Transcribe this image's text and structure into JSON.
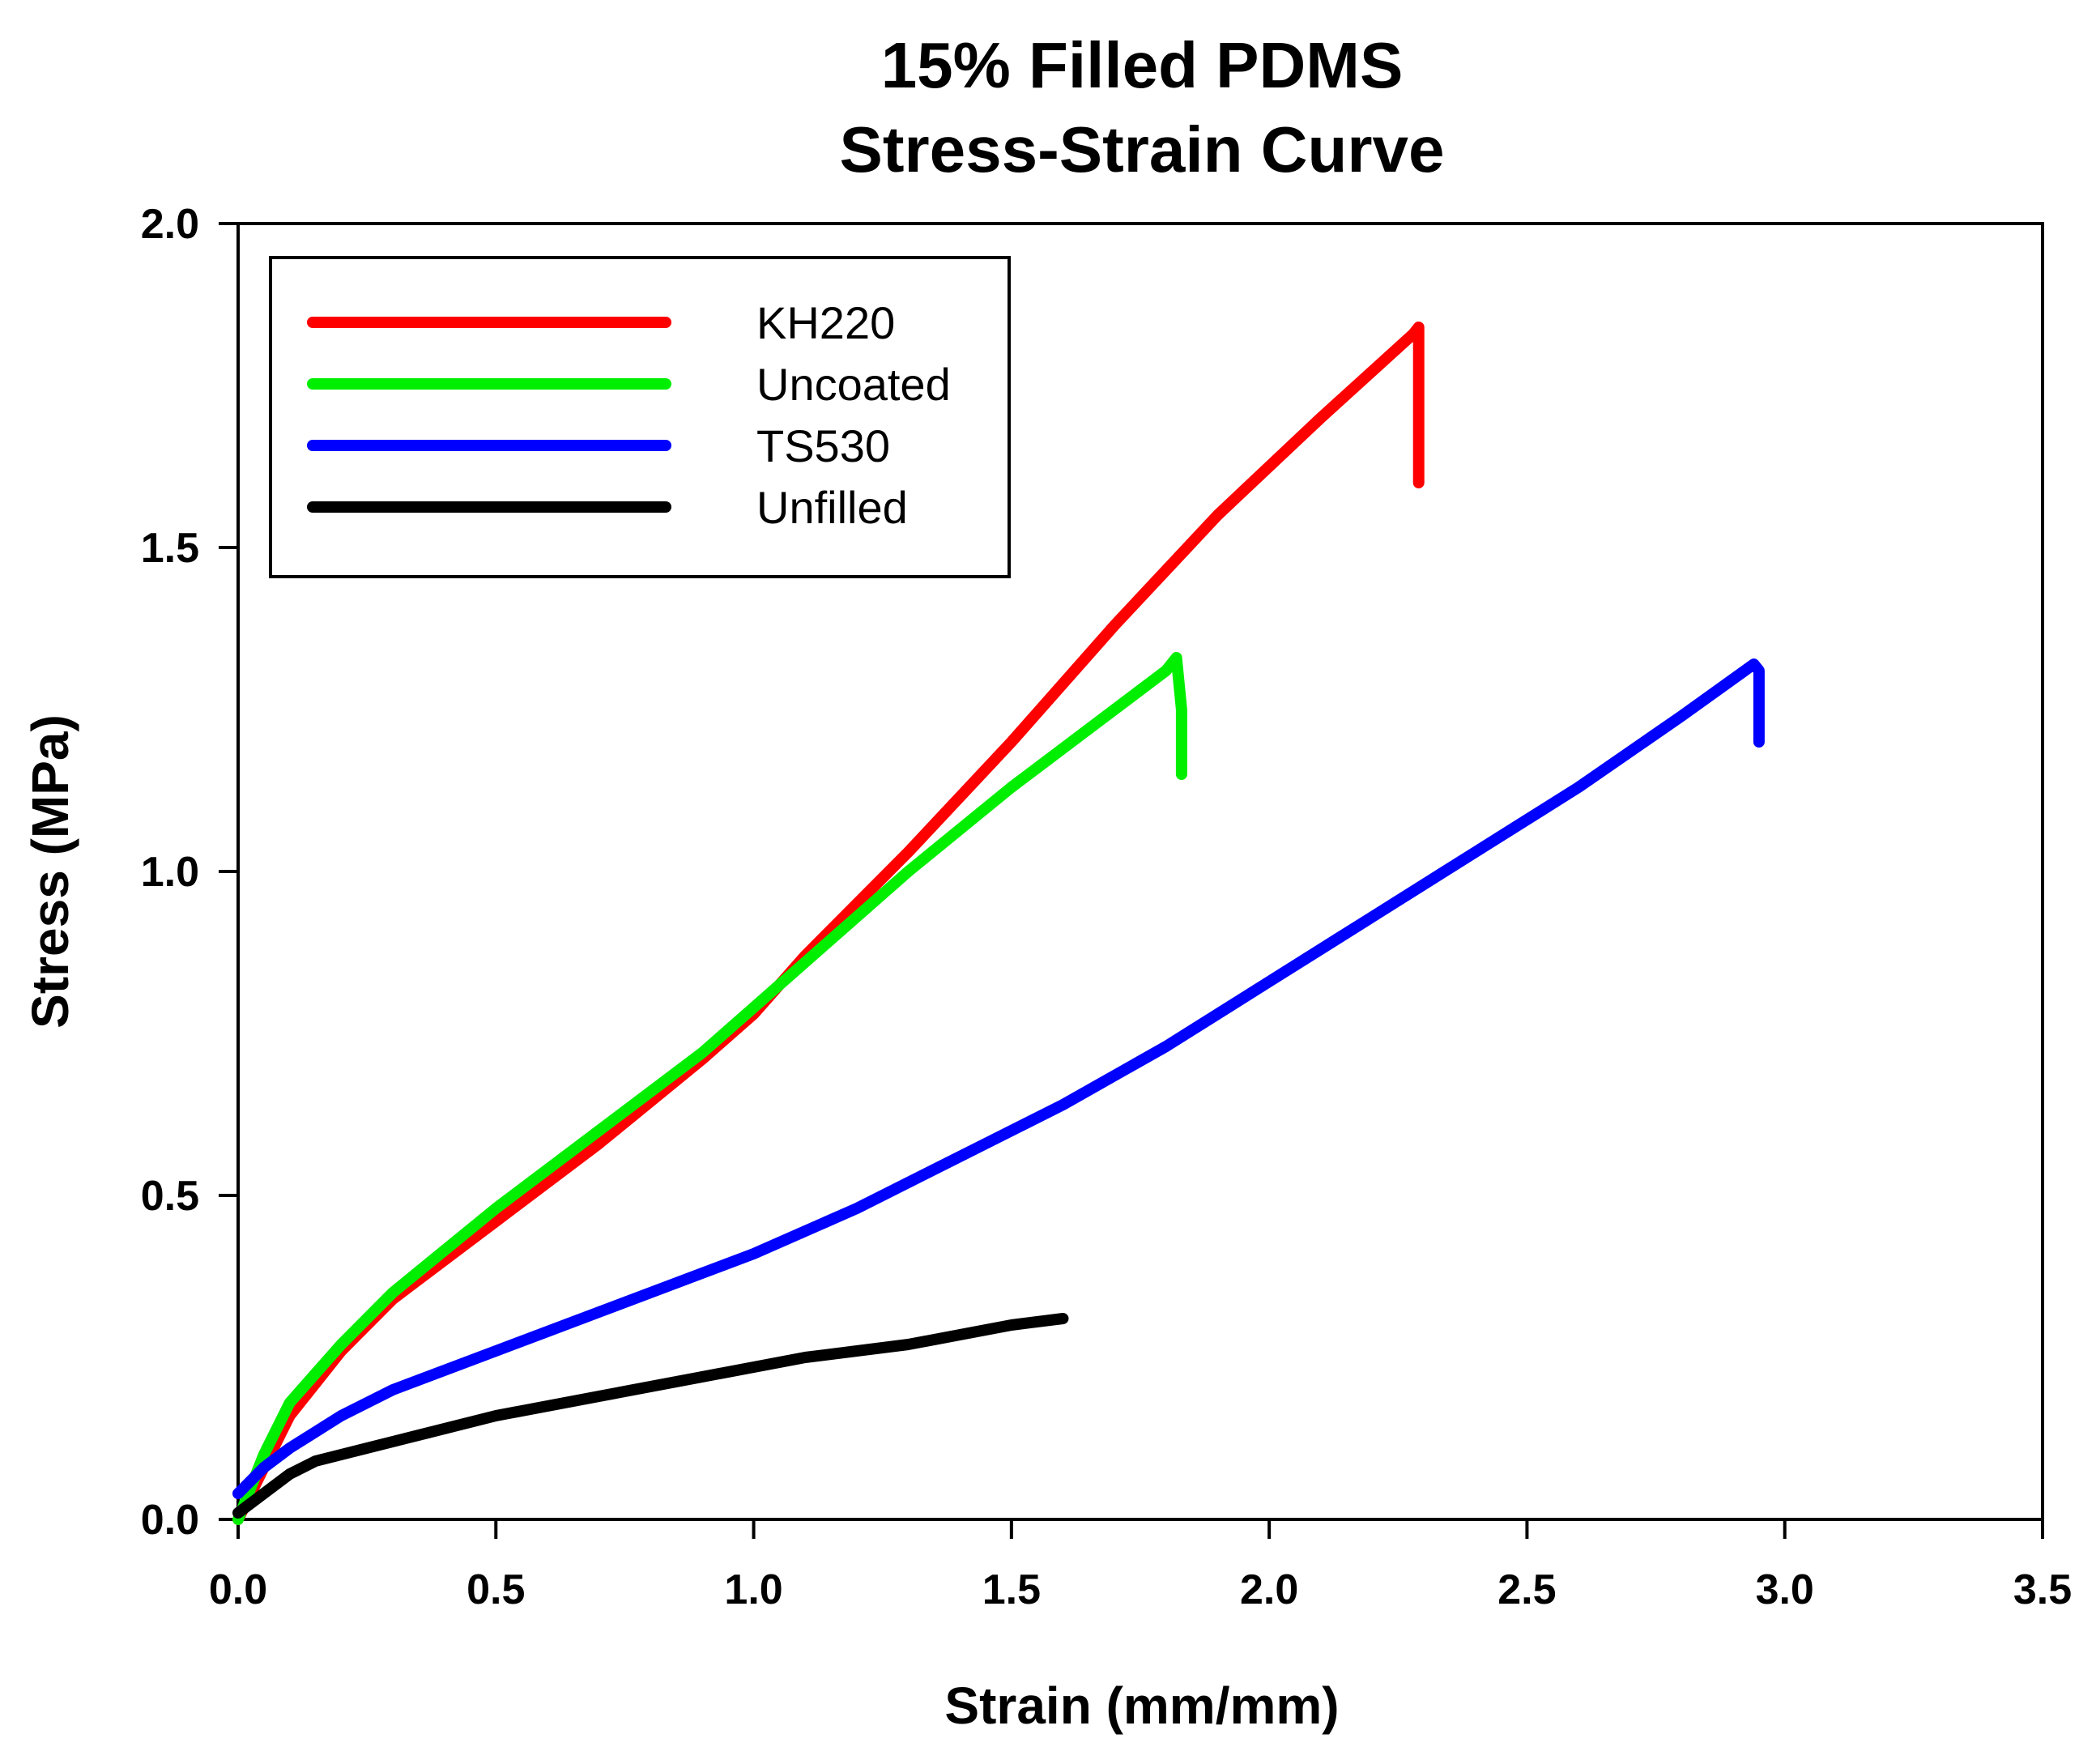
{
  "chart_data": {
    "type": "line",
    "title": "15% Filled PDMS",
    "subtitle": "Stress-Strain Curve",
    "xlabel": "Strain (mm/mm)",
    "ylabel": "Stress (MPa)",
    "xlim": [
      0.0,
      3.5
    ],
    "ylim": [
      0.0,
      2.0
    ],
    "x_ticks": [
      "0.0",
      "0.5",
      "1.0",
      "1.5",
      "2.0",
      "2.5",
      "3.0",
      "3.5"
    ],
    "y_ticks": [
      "0.0",
      "0.5",
      "1.0",
      "1.5",
      "2.0"
    ],
    "grid": false,
    "legend_position": "top-left",
    "series": [
      {
        "name": "KH220",
        "color": "#ff0000",
        "points": [
          [
            0.0,
            0.0
          ],
          [
            0.05,
            0.08
          ],
          [
            0.1,
            0.16
          ],
          [
            0.2,
            0.26
          ],
          [
            0.3,
            0.34
          ],
          [
            0.5,
            0.46
          ],
          [
            0.7,
            0.58
          ],
          [
            0.9,
            0.71
          ],
          [
            1.0,
            0.78
          ],
          [
            1.1,
            0.87
          ],
          [
            1.3,
            1.03
          ],
          [
            1.5,
            1.2
          ],
          [
            1.7,
            1.38
          ],
          [
            1.9,
            1.55
          ],
          [
            2.1,
            1.7
          ],
          [
            2.28,
            1.83
          ],
          [
            2.29,
            1.84
          ],
          [
            2.29,
            1.73
          ],
          [
            2.29,
            1.6
          ]
        ]
      },
      {
        "name": "Uncoated",
        "color": "#00ee00",
        "points": [
          [
            0.0,
            0.0
          ],
          [
            0.05,
            0.1
          ],
          [
            0.1,
            0.18
          ],
          [
            0.2,
            0.27
          ],
          [
            0.3,
            0.35
          ],
          [
            0.5,
            0.48
          ],
          [
            0.7,
            0.6
          ],
          [
            0.9,
            0.72
          ],
          [
            1.0,
            0.79
          ],
          [
            1.1,
            0.86
          ],
          [
            1.3,
            1.0
          ],
          [
            1.5,
            1.13
          ],
          [
            1.7,
            1.25
          ],
          [
            1.8,
            1.31
          ],
          [
            1.82,
            1.33
          ],
          [
            1.83,
            1.25
          ],
          [
            1.83,
            1.15
          ]
        ]
      },
      {
        "name": "TS530",
        "color": "#0000ff",
        "points": [
          [
            0.0,
            0.04
          ],
          [
            0.05,
            0.08
          ],
          [
            0.1,
            0.11
          ],
          [
            0.2,
            0.16
          ],
          [
            0.3,
            0.2
          ],
          [
            0.5,
            0.26
          ],
          [
            0.7,
            0.32
          ],
          [
            0.9,
            0.38
          ],
          [
            1.0,
            0.41
          ],
          [
            1.2,
            0.48
          ],
          [
            1.4,
            0.56
          ],
          [
            1.6,
            0.64
          ],
          [
            1.8,
            0.73
          ],
          [
            2.0,
            0.83
          ],
          [
            2.2,
            0.93
          ],
          [
            2.4,
            1.03
          ],
          [
            2.6,
            1.13
          ],
          [
            2.8,
            1.24
          ],
          [
            2.94,
            1.32
          ],
          [
            2.95,
            1.31
          ],
          [
            2.95,
            1.25
          ],
          [
            2.95,
            1.2
          ]
        ]
      },
      {
        "name": "Unfilled",
        "color": "#000000",
        "points": [
          [
            0.0,
            0.01
          ],
          [
            0.05,
            0.04
          ],
          [
            0.1,
            0.07
          ],
          [
            0.15,
            0.09
          ],
          [
            0.2,
            0.1
          ],
          [
            0.3,
            0.12
          ],
          [
            0.5,
            0.16
          ],
          [
            0.7,
            0.19
          ],
          [
            0.9,
            0.22
          ],
          [
            1.1,
            0.25
          ],
          [
            1.3,
            0.27
          ],
          [
            1.5,
            0.3
          ],
          [
            1.6,
            0.31
          ]
        ]
      }
    ]
  }
}
